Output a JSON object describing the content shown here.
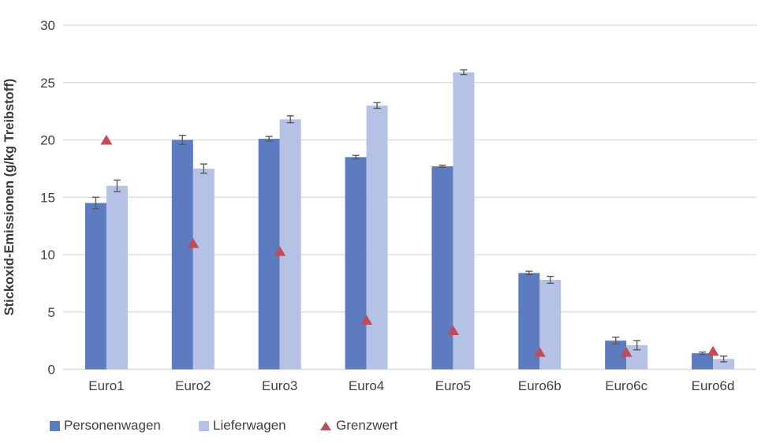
{
  "chart_data": {
    "type": "bar",
    "title": "",
    "categories": [
      "Euro1",
      "Euro2",
      "Euro3",
      "Euro4",
      "Euro5",
      "Euro6b",
      "Euro6c",
      "Euro6d"
    ],
    "series": [
      {
        "name": "Personenwagen",
        "color": "#5C7CBF",
        "values": [
          14.5,
          20.0,
          20.1,
          18.5,
          17.7,
          8.4,
          2.5,
          1.4
        ],
        "errors": [
          0.5,
          0.4,
          0.2,
          0.15,
          0.1,
          0.15,
          0.3,
          0.1
        ]
      },
      {
        "name": "Lieferwagen",
        "color": "#B5C2E5",
        "values": [
          16.0,
          17.5,
          21.8,
          23.0,
          25.9,
          7.8,
          2.1,
          0.9
        ],
        "errors": [
          0.5,
          0.4,
          0.3,
          0.25,
          0.2,
          0.3,
          0.4,
          0.25
        ]
      }
    ],
    "markers": {
      "name": "Grenzwert",
      "color": "#C14B57",
      "values": [
        20,
        11,
        10.3,
        4.3,
        3.4,
        1.5,
        1.5,
        1.6
      ]
    },
    "ylabel": "Stickoxid-Emissionen (g/kg Treibstoff)",
    "ylim": [
      0,
      30
    ],
    "yticks": [
      0,
      5,
      10,
      15,
      20,
      25,
      30
    ],
    "grid": true,
    "legend_position": "bottom",
    "colors": {
      "gridline": "#D9D9D9",
      "axis_text": "#404040",
      "error_bar": "#595959"
    }
  }
}
